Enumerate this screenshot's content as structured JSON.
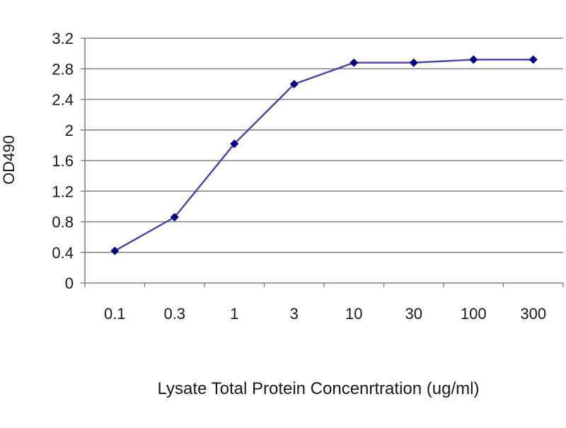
{
  "chart_data": {
    "type": "line",
    "title": "",
    "xlabel": "Lysate Total Protein Concenrtration (ug/ml)",
    "ylabel": "OD490",
    "categories": [
      "0.1",
      "0.3",
      "1",
      "3",
      "10",
      "30",
      "100",
      "300"
    ],
    "series": [
      {
        "values": [
          0.42,
          0.86,
          1.82,
          2.6,
          2.88,
          2.88,
          2.92,
          2.92
        ]
      }
    ],
    "yticks": [
      "0",
      "0.4",
      "0.8",
      "1.2",
      "1.6",
      "2",
      "2.4",
      "2.8",
      "3.2"
    ],
    "ylim": [
      0,
      3.2
    ],
    "grid": true,
    "legend": "none",
    "colors": {
      "line": "#4444aa",
      "marker": "#000080",
      "gridline": "#808080",
      "axis": "#808080"
    }
  }
}
